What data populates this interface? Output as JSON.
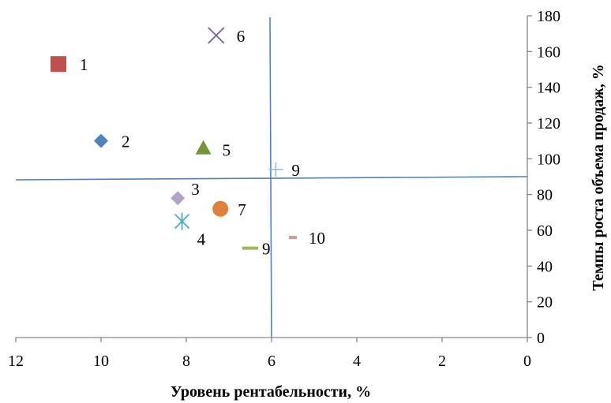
{
  "chart_data": {
    "type": "scatter",
    "xlabel": "Уровень рентабельности, %",
    "ylabel": "Темпы роста объема продаж, %",
    "xlim": [
      12,
      0
    ],
    "ylim": [
      0,
      180
    ],
    "x_reversed": true,
    "y_axis_side": "right",
    "x_ticks": [
      12,
      10,
      8,
      6,
      4,
      2,
      0
    ],
    "y_ticks": [
      0,
      20,
      40,
      60,
      80,
      100,
      120,
      140,
      160,
      180
    ],
    "grid": false,
    "points": [
      {
        "label": "1",
        "x": 11.0,
        "y": 153,
        "marker": "square",
        "color": "#c0504d"
      },
      {
        "label": "2",
        "x": 10.0,
        "y": 110,
        "marker": "diamond",
        "color": "#4f81bd"
      },
      {
        "label": "3",
        "x": 8.2,
        "y": 78,
        "marker": "diamond",
        "color": "#b3a2c7"
      },
      {
        "label": "4",
        "x": 8.1,
        "y": 65,
        "marker": "asterisk",
        "color": "#4bacc6"
      },
      {
        "label": "5",
        "x": 7.6,
        "y": 106,
        "marker": "triangle",
        "color": "#77933c"
      },
      {
        "label": "6",
        "x": 7.3,
        "y": 169,
        "marker": "x",
        "color": "#8064a2"
      },
      {
        "label": "7",
        "x": 7.2,
        "y": 72,
        "marker": "circle",
        "color": "#e0803a"
      },
      {
        "label": "9",
        "x": 5.9,
        "y": 94,
        "marker": "plus",
        "color": "#95b3d7"
      },
      {
        "label": "9",
        "x": 6.5,
        "y": 50,
        "marker": "dash",
        "color": "#9bbb59"
      },
      {
        "label": "10",
        "x": 5.5,
        "y": 56,
        "marker": "dash",
        "color": "#d99694"
      }
    ],
    "reference_lines": [
      {
        "orientation": "horizontal",
        "color": "#4f81bd"
      },
      {
        "orientation": "vertical",
        "color": "#4f81bd"
      }
    ]
  }
}
